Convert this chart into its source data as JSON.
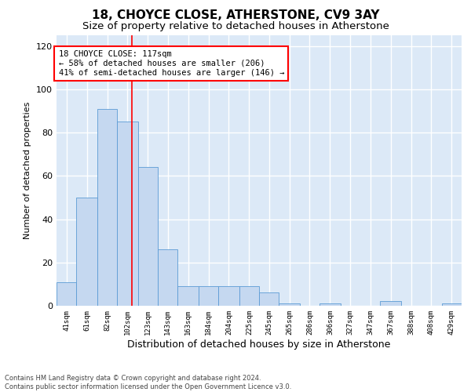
{
  "title": "18, CHOYCE CLOSE, ATHERSTONE, CV9 3AY",
  "subtitle": "Size of property relative to detached houses in Atherstone",
  "xlabel": "Distribution of detached houses by size in Atherstone",
  "ylabel": "Number of detached properties",
  "footer_line1": "Contains HM Land Registry data © Crown copyright and database right 2024.",
  "footer_line2": "Contains public sector information licensed under the Open Government Licence v3.0.",
  "annotation_line1": "18 CHOYCE CLOSE: 117sqm",
  "annotation_line2": "← 58% of detached houses are smaller (206)",
  "annotation_line3": "41% of semi-detached houses are larger (146) →",
  "bar_left_edges": [
    41,
    61,
    82,
    102,
    123,
    143,
    163,
    184,
    204,
    225,
    245,
    265,
    286,
    306,
    327,
    347,
    367,
    388,
    408,
    429
  ],
  "bar_widths": [
    20,
    21,
    20,
    21,
    20,
    20,
    21,
    20,
    21,
    20,
    20,
    21,
    20,
    21,
    20,
    20,
    21,
    20,
    21,
    20
  ],
  "bar_heights": [
    11,
    50,
    91,
    85,
    64,
    26,
    9,
    9,
    9,
    9,
    6,
    1,
    0,
    1,
    0,
    0,
    2,
    0,
    0,
    1
  ],
  "bar_color": "#c5d8f0",
  "bar_edge_color": "#5b9bd5",
  "vline_x": 117,
  "vline_color": "red",
  "ylim": [
    0,
    125
  ],
  "yticks": [
    0,
    20,
    40,
    60,
    80,
    100,
    120
  ],
  "background_color": "#dce9f7",
  "grid_color": "#ffffff",
  "title_fontsize": 11,
  "subtitle_fontsize": 9.5,
  "annotation_fontsize": 7.5,
  "ylabel_fontsize": 8,
  "xlabel_fontsize": 9
}
